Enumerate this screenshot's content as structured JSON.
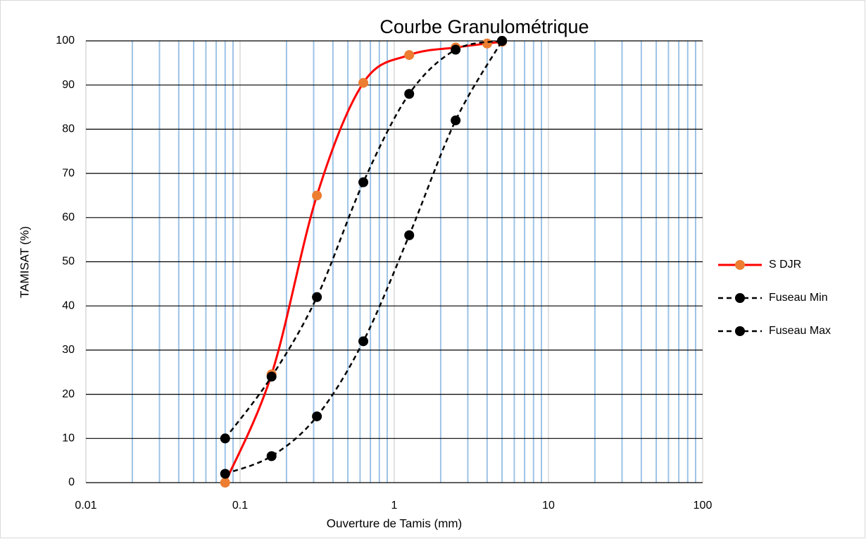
{
  "chart_data": {
    "type": "line",
    "title": "Courbe Granulométrique",
    "xlabel": "Ouverture de Tamis (mm)",
    "ylabel": "TAMISAT (%)",
    "xscale": "log",
    "xlim": [
      0.01,
      100
    ],
    "xticks": [
      0.01,
      0.1,
      1,
      10,
      100
    ],
    "ylim": [
      0,
      100
    ],
    "yticks": [
      0,
      10,
      20,
      30,
      40,
      50,
      60,
      70,
      80,
      90,
      100
    ],
    "grid": true,
    "minor_grid": true,
    "legend": "right",
    "series": [
      {
        "name": "S DJR",
        "color": "#ff0000",
        "marker_color": "#ed7d31",
        "dash": false,
        "x": [
          0.08,
          0.16,
          0.315,
          0.63,
          1.25,
          2.5,
          4,
          5
        ],
        "values": [
          0,
          24.5,
          65,
          90.5,
          96.8,
          98.5,
          99.4,
          99.8
        ]
      },
      {
        "name": "Fuseau Min",
        "color": "#000000",
        "marker_color": "#000000",
        "dash": true,
        "x": [
          0.08,
          0.16,
          0.315,
          0.63,
          1.25,
          2.5,
          5
        ],
        "values": [
          10,
          24,
          42,
          68,
          88,
          98,
          100
        ]
      },
      {
        "name": "Fuseau Max",
        "color": "#000000",
        "marker_color": "#000000",
        "dash": true,
        "x": [
          0.08,
          0.16,
          0.315,
          0.63,
          1.25,
          2.5,
          5
        ],
        "values": [
          2,
          6,
          15,
          32,
          56,
          82,
          100
        ]
      }
    ]
  }
}
